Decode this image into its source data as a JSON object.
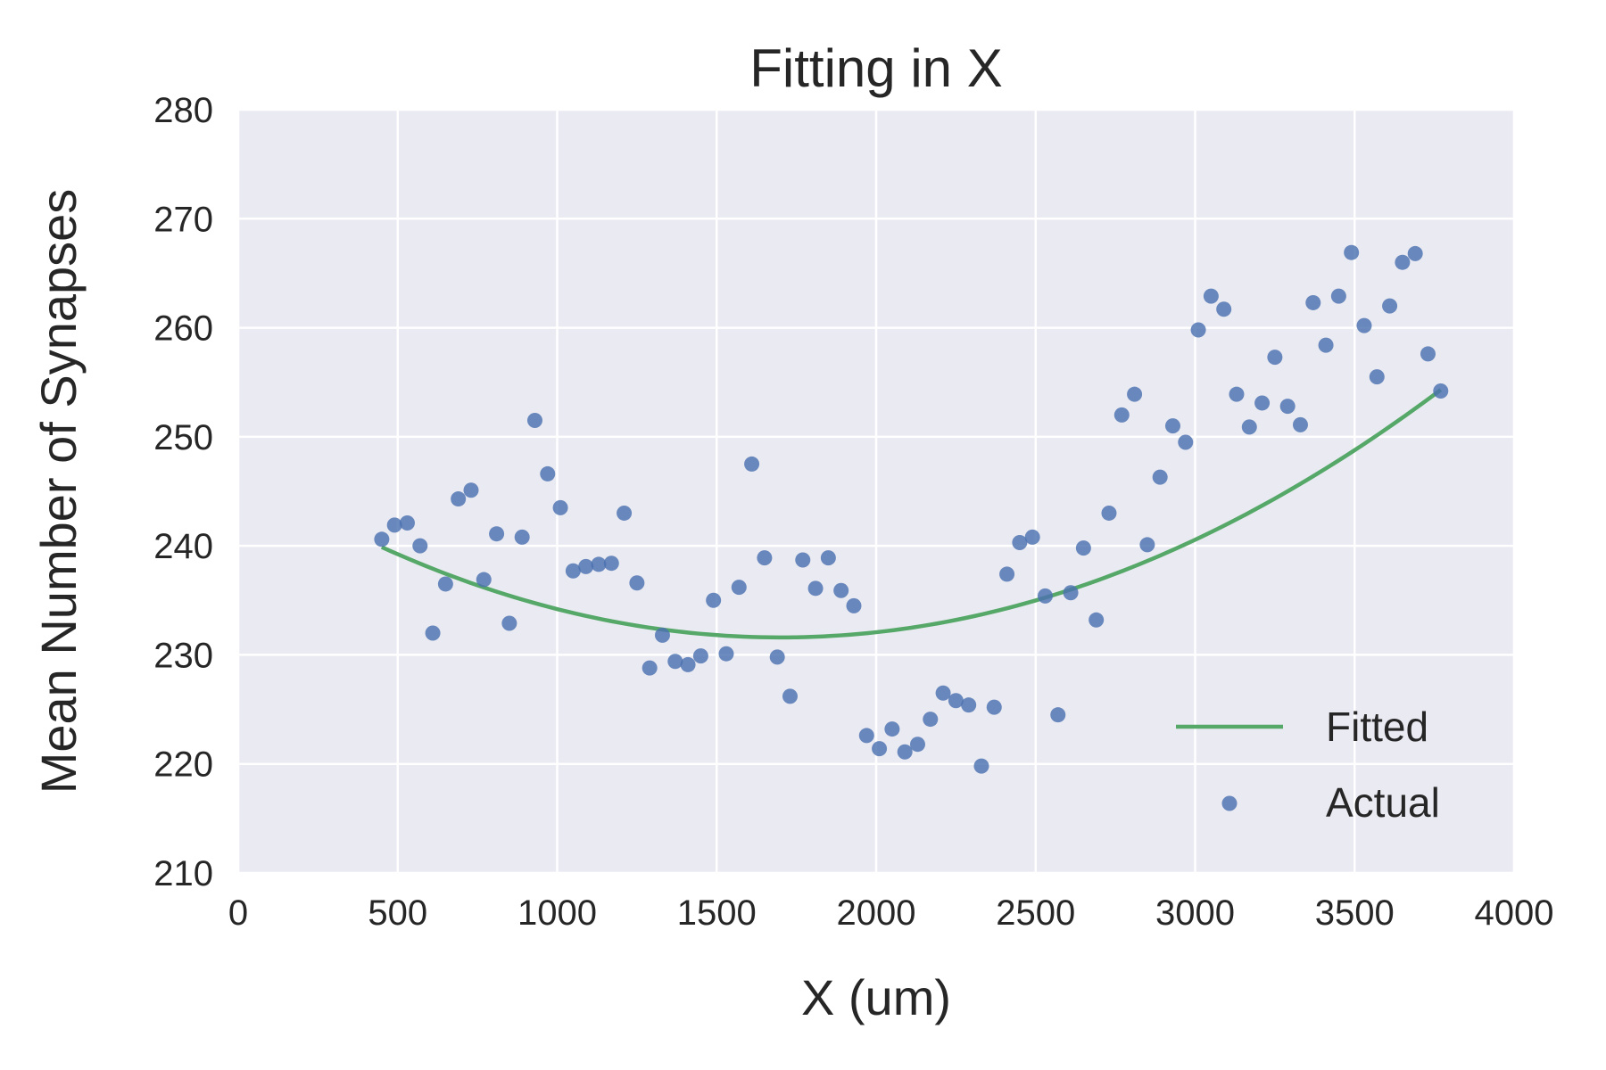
{
  "chart_data": {
    "type": "scatter",
    "title": "Fitting in X",
    "xlabel": "X (um)",
    "ylabel": "Mean Number of Synapses",
    "xlim": [
      0,
      4000
    ],
    "ylim": [
      210,
      280
    ],
    "xticks": [
      "0",
      "500",
      "1000",
      "1500",
      "2000",
      "2500",
      "3000",
      "3500",
      "4000"
    ],
    "yticks": [
      "210",
      "220",
      "230",
      "240",
      "250",
      "260",
      "270",
      "280"
    ],
    "xtick_values": [
      0,
      500,
      1000,
      1500,
      2000,
      2500,
      3000,
      3500,
      4000
    ],
    "ytick_values": [
      210,
      220,
      230,
      240,
      250,
      260,
      270,
      280
    ],
    "grid": true,
    "legend_position": "lower-right",
    "colors": {
      "background": "#EAEAF2",
      "grid": "#FFFFFF",
      "fitted": "#55A868",
      "actual": "#4C72B0",
      "text": "#262626"
    },
    "series": [
      {
        "name": "Fitted",
        "kind": "line",
        "coefficients": {
          "a": 5.3e-06,
          "vertex_x": 1700,
          "vertex_y": 231.6
        }
      },
      {
        "name": "Actual",
        "kind": "scatter",
        "points": [
          [
            450,
            240.6
          ],
          [
            490,
            241.9
          ],
          [
            530,
            242.1
          ],
          [
            570,
            240.0
          ],
          [
            610,
            232.0
          ],
          [
            650,
            236.5
          ],
          [
            690,
            244.3
          ],
          [
            730,
            245.1
          ],
          [
            770,
            236.9
          ],
          [
            810,
            241.1
          ],
          [
            850,
            232.9
          ],
          [
            890,
            240.8
          ],
          [
            930,
            251.5
          ],
          [
            970,
            246.6
          ],
          [
            1010,
            243.5
          ],
          [
            1050,
            237.7
          ],
          [
            1090,
            238.1
          ],
          [
            1130,
            238.3
          ],
          [
            1170,
            238.4
          ],
          [
            1210,
            243.0
          ],
          [
            1250,
            236.6
          ],
          [
            1290,
            228.8
          ],
          [
            1330,
            231.8
          ],
          [
            1370,
            229.4
          ],
          [
            1410,
            229.1
          ],
          [
            1450,
            229.9
          ],
          [
            1490,
            235.0
          ],
          [
            1530,
            230.1
          ],
          [
            1570,
            236.2
          ],
          [
            1610,
            247.5
          ],
          [
            1650,
            238.9
          ],
          [
            1690,
            229.8
          ],
          [
            1730,
            226.2
          ],
          [
            1770,
            238.7
          ],
          [
            1810,
            236.1
          ],
          [
            1850,
            238.9
          ],
          [
            1890,
            235.9
          ],
          [
            1930,
            234.5
          ],
          [
            1970,
            222.6
          ],
          [
            2010,
            221.4
          ],
          [
            2050,
            223.2
          ],
          [
            2090,
            221.1
          ],
          [
            2130,
            221.8
          ],
          [
            2170,
            224.1
          ],
          [
            2210,
            226.5
          ],
          [
            2250,
            225.8
          ],
          [
            2290,
            225.4
          ],
          [
            2330,
            219.8
          ],
          [
            2370,
            225.2
          ],
          [
            2410,
            237.4
          ],
          [
            2450,
            240.3
          ],
          [
            2490,
            240.8
          ],
          [
            2530,
            235.4
          ],
          [
            2570,
            224.5
          ],
          [
            2610,
            235.7
          ],
          [
            2650,
            239.8
          ],
          [
            2690,
            233.2
          ],
          [
            2730,
            243.0
          ],
          [
            2770,
            252.0
          ],
          [
            2810,
            253.9
          ],
          [
            2850,
            240.1
          ],
          [
            2890,
            246.3
          ],
          [
            2930,
            251.0
          ],
          [
            2970,
            249.5
          ],
          [
            3010,
            259.8
          ],
          [
            3050,
            262.9
          ],
          [
            3090,
            261.7
          ],
          [
            3130,
            253.9
          ],
          [
            3170,
            250.9
          ],
          [
            3210,
            253.1
          ],
          [
            3250,
            257.3
          ],
          [
            3290,
            252.8
          ],
          [
            3330,
            251.1
          ],
          [
            3370,
            262.3
          ],
          [
            3410,
            258.4
          ],
          [
            3450,
            262.9
          ],
          [
            3490,
            266.9
          ],
          [
            3530,
            260.2
          ],
          [
            3570,
            255.5
          ],
          [
            3610,
            262.0
          ],
          [
            3650,
            266.0
          ],
          [
            3690,
            266.8
          ],
          [
            3730,
            257.6
          ],
          [
            3770,
            254.2
          ]
        ]
      }
    ]
  }
}
